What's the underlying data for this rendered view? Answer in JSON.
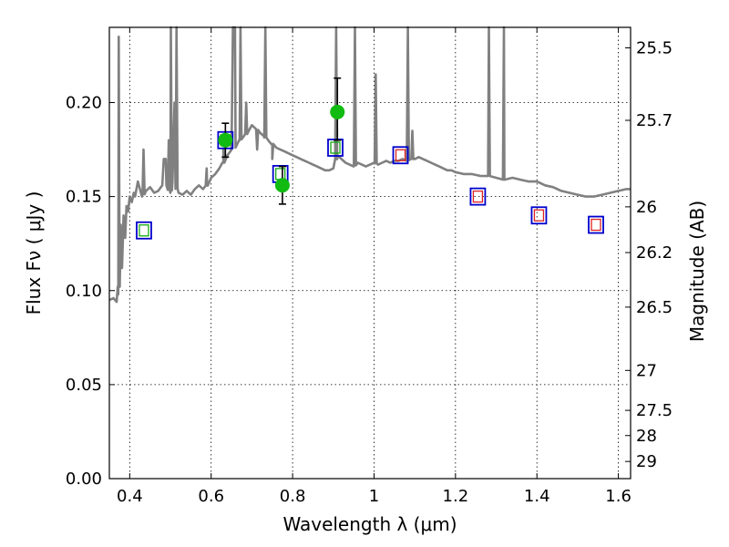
{
  "chart_data": {
    "type": "scatter",
    "xlabel": "Wavelength  λ (μm)",
    "ylabel": "Flux  Fν  ( μJy )",
    "y2label": "Magnitude (AB)",
    "xlim": [
      0.35,
      1.63
    ],
    "ylim": [
      0.0,
      0.24
    ],
    "grid": true,
    "x_ticks": [
      0.4,
      0.6,
      0.8,
      1.0,
      1.2,
      1.4,
      1.6
    ],
    "x_tick_labels": [
      "0.4",
      "0.6",
      "0.8",
      "1",
      "1.2",
      "1.4",
      "1.6"
    ],
    "y_ticks": [
      0.0,
      0.05,
      0.1,
      0.15,
      0.2
    ],
    "y_tick_labels": [
      "0.00",
      "0.05",
      "0.10",
      "0.15",
      "0.20"
    ],
    "y2_ticks": [
      {
        "mag": 25.5,
        "label": "25.5"
      },
      {
        "mag": 25.7,
        "label": "25.7"
      },
      {
        "mag": 26.0,
        "label": "26"
      },
      {
        "mag": 26.2,
        "label": "26.2"
      },
      {
        "mag": 26.5,
        "label": "26.5"
      },
      {
        "mag": 27.0,
        "label": "27"
      },
      {
        "mag": 27.5,
        "label": "27.5"
      },
      {
        "mag": 28.0,
        "label": "28"
      },
      {
        "mag": 29.0,
        "label": "29"
      }
    ],
    "colors": {
      "sed": "#808080",
      "observed": "#11bb11",
      "model_box": "#0000cc",
      "inner_green": "#11aa11",
      "inner_red": "#dd2222",
      "errorbar": "#000000"
    },
    "sed_spectrum": [
      [
        0.35,
        0.095
      ],
      [
        0.36,
        0.096
      ],
      [
        0.368,
        0.094
      ],
      [
        0.372,
        0.098
      ],
      [
        0.375,
        0.11
      ],
      [
        0.378,
        0.135
      ],
      [
        0.381,
        0.112
      ],
      [
        0.385,
        0.14
      ],
      [
        0.389,
        0.128
      ],
      [
        0.392,
        0.145
      ],
      [
        0.396,
        0.142
      ],
      [
        0.4,
        0.15
      ],
      [
        0.405,
        0.147
      ],
      [
        0.41,
        0.152
      ],
      [
        0.413,
        0.15
      ],
      [
        0.42,
        0.158
      ],
      [
        0.43,
        0.15
      ],
      [
        0.44,
        0.153
      ],
      [
        0.45,
        0.155
      ],
      [
        0.46,
        0.152
      ],
      [
        0.47,
        0.153
      ],
      [
        0.48,
        0.156
      ],
      [
        0.486,
        0.17
      ],
      [
        0.49,
        0.156
      ],
      [
        0.5,
        0.152
      ],
      [
        0.505,
        0.158
      ],
      [
        0.51,
        0.2
      ],
      [
        0.513,
        0.155
      ],
      [
        0.52,
        0.152
      ],
      [
        0.53,
        0.151
      ],
      [
        0.54,
        0.153
      ],
      [
        0.55,
        0.151
      ],
      [
        0.56,
        0.154
      ],
      [
        0.57,
        0.156
      ],
      [
        0.58,
        0.154
      ],
      [
        0.59,
        0.156
      ],
      [
        0.6,
        0.16
      ],
      [
        0.61,
        0.162
      ],
      [
        0.62,
        0.165
      ],
      [
        0.63,
        0.168
      ],
      [
        0.64,
        0.172
      ],
      [
        0.65,
        0.175
      ],
      [
        0.656,
        0.24
      ],
      [
        0.66,
        0.176
      ],
      [
        0.67,
        0.18
      ],
      [
        0.68,
        0.182
      ],
      [
        0.69,
        0.184
      ],
      [
        0.7,
        0.188
      ],
      [
        0.71,
        0.186
      ],
      [
        0.72,
        0.184
      ],
      [
        0.73,
        0.182
      ],
      [
        0.74,
        0.18
      ],
      [
        0.75,
        0.178
      ],
      [
        0.76,
        0.176
      ],
      [
        0.77,
        0.175
      ],
      [
        0.78,
        0.174
      ],
      [
        0.79,
        0.173
      ],
      [
        0.8,
        0.172
      ],
      [
        0.81,
        0.171
      ],
      [
        0.82,
        0.17
      ],
      [
        0.83,
        0.169
      ],
      [
        0.84,
        0.168
      ],
      [
        0.85,
        0.167
      ],
      [
        0.86,
        0.166
      ],
      [
        0.87,
        0.165
      ],
      [
        0.88,
        0.164
      ],
      [
        0.89,
        0.164
      ],
      [
        0.9,
        0.165
      ],
      [
        0.91,
        0.172
      ],
      [
        0.92,
        0.17
      ],
      [
        0.93,
        0.168
      ],
      [
        0.94,
        0.167
      ],
      [
        0.95,
        0.166
      ],
      [
        0.96,
        0.168
      ],
      [
        0.97,
        0.167
      ],
      [
        0.98,
        0.166
      ],
      [
        0.99,
        0.167
      ],
      [
        1.0,
        0.168
      ],
      [
        1.01,
        0.167
      ],
      [
        1.02,
        0.168
      ],
      [
        1.03,
        0.169
      ],
      [
        1.04,
        0.168
      ],
      [
        1.05,
        0.169
      ],
      [
        1.06,
        0.169
      ],
      [
        1.07,
        0.17
      ],
      [
        1.08,
        0.169
      ],
      [
        1.09,
        0.17
      ],
      [
        1.1,
        0.17
      ],
      [
        1.11,
        0.171
      ],
      [
        1.12,
        0.17
      ],
      [
        1.13,
        0.169
      ],
      [
        1.14,
        0.168
      ],
      [
        1.15,
        0.167
      ],
      [
        1.16,
        0.166
      ],
      [
        1.17,
        0.165
      ],
      [
        1.18,
        0.164
      ],
      [
        1.19,
        0.164
      ],
      [
        1.2,
        0.163
      ],
      [
        1.22,
        0.162
      ],
      [
        1.24,
        0.162
      ],
      [
        1.26,
        0.161
      ],
      [
        1.28,
        0.161
      ],
      [
        1.3,
        0.16
      ],
      [
        1.32,
        0.159
      ],
      [
        1.34,
        0.16
      ],
      [
        1.36,
        0.159
      ],
      [
        1.38,
        0.158
      ],
      [
        1.4,
        0.158
      ],
      [
        1.42,
        0.156
      ],
      [
        1.44,
        0.155
      ],
      [
        1.46,
        0.153
      ],
      [
        1.48,
        0.152
      ],
      [
        1.5,
        0.151
      ],
      [
        1.52,
        0.15
      ],
      [
        1.54,
        0.15
      ],
      [
        1.56,
        0.151
      ],
      [
        1.58,
        0.152
      ],
      [
        1.6,
        0.153
      ],
      [
        1.62,
        0.154
      ],
      [
        1.63,
        0.154
      ]
    ],
    "emission_lines": [
      {
        "x": 0.373,
        "peak": 0.235
      },
      {
        "x": 0.434,
        "peak": 0.175
      },
      {
        "x": 0.486,
        "peak": 0.17
      },
      {
        "x": 0.496,
        "peak": 0.18
      },
      {
        "x": 0.501,
        "peak": 0.24
      },
      {
        "x": 0.515,
        "peak": 0.24
      },
      {
        "x": 0.589,
        "peak": 0.165
      },
      {
        "x": 0.63,
        "peak": 0.175
      },
      {
        "x": 0.656,
        "peak": 0.24
      },
      {
        "x": 0.672,
        "peak": 0.24
      },
      {
        "x": 0.686,
        "peak": 0.2
      },
      {
        "x": 0.713,
        "peak": 0.175
      },
      {
        "x": 0.733,
        "peak": 0.24
      },
      {
        "x": 0.75,
        "peak": 0.17
      },
      {
        "x": 0.907,
        "peak": 0.24
      },
      {
        "x": 0.953,
        "peak": 0.24
      },
      {
        "x": 1.004,
        "peak": 0.215
      },
      {
        "x": 1.083,
        "peak": 0.24
      },
      {
        "x": 1.094,
        "peak": 0.185
      },
      {
        "x": 1.282,
        "peak": 0.24
      },
      {
        "x": 1.319,
        "peak": 0.24
      }
    ],
    "observed_points": [
      {
        "x": 0.635,
        "y": 0.18,
        "err_lo": 0.009,
        "err_hi": 0.009
      },
      {
        "x": 0.775,
        "y": 0.156,
        "err_lo": 0.01,
        "err_hi": 0.01
      },
      {
        "x": 0.91,
        "y": 0.195,
        "err_lo": 0.015,
        "err_hi": 0.018
      }
    ],
    "model_points": [
      {
        "x": 0.435,
        "y": 0.132,
        "inner": "green"
      },
      {
        "x": 0.635,
        "y": 0.18,
        "inner": "green"
      },
      {
        "x": 0.77,
        "y": 0.162,
        "inner": "green"
      },
      {
        "x": 0.905,
        "y": 0.176,
        "inner": "green"
      },
      {
        "x": 1.065,
        "y": 0.172,
        "inner": "red"
      },
      {
        "x": 1.255,
        "y": 0.15,
        "inner": "red"
      },
      {
        "x": 1.405,
        "y": 0.14,
        "inner": "red"
      },
      {
        "x": 1.545,
        "y": 0.135,
        "inner": "red"
      }
    ]
  }
}
